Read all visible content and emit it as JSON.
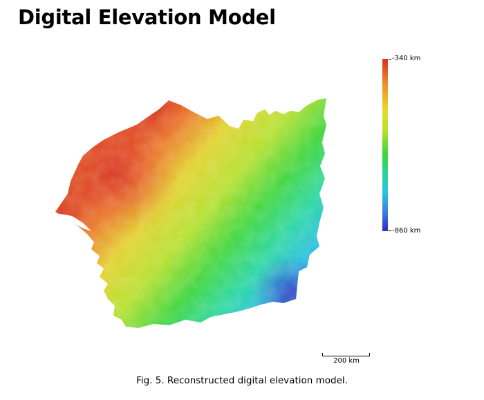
{
  "page_title": "Digital Elevation Model",
  "legend": {
    "max_label": "-340 km",
    "min_label": "-860 km"
  },
  "scale_bar": {
    "label": "200 km"
  },
  "caption": "Fig. 5. Reconstructed digital elevation model."
}
